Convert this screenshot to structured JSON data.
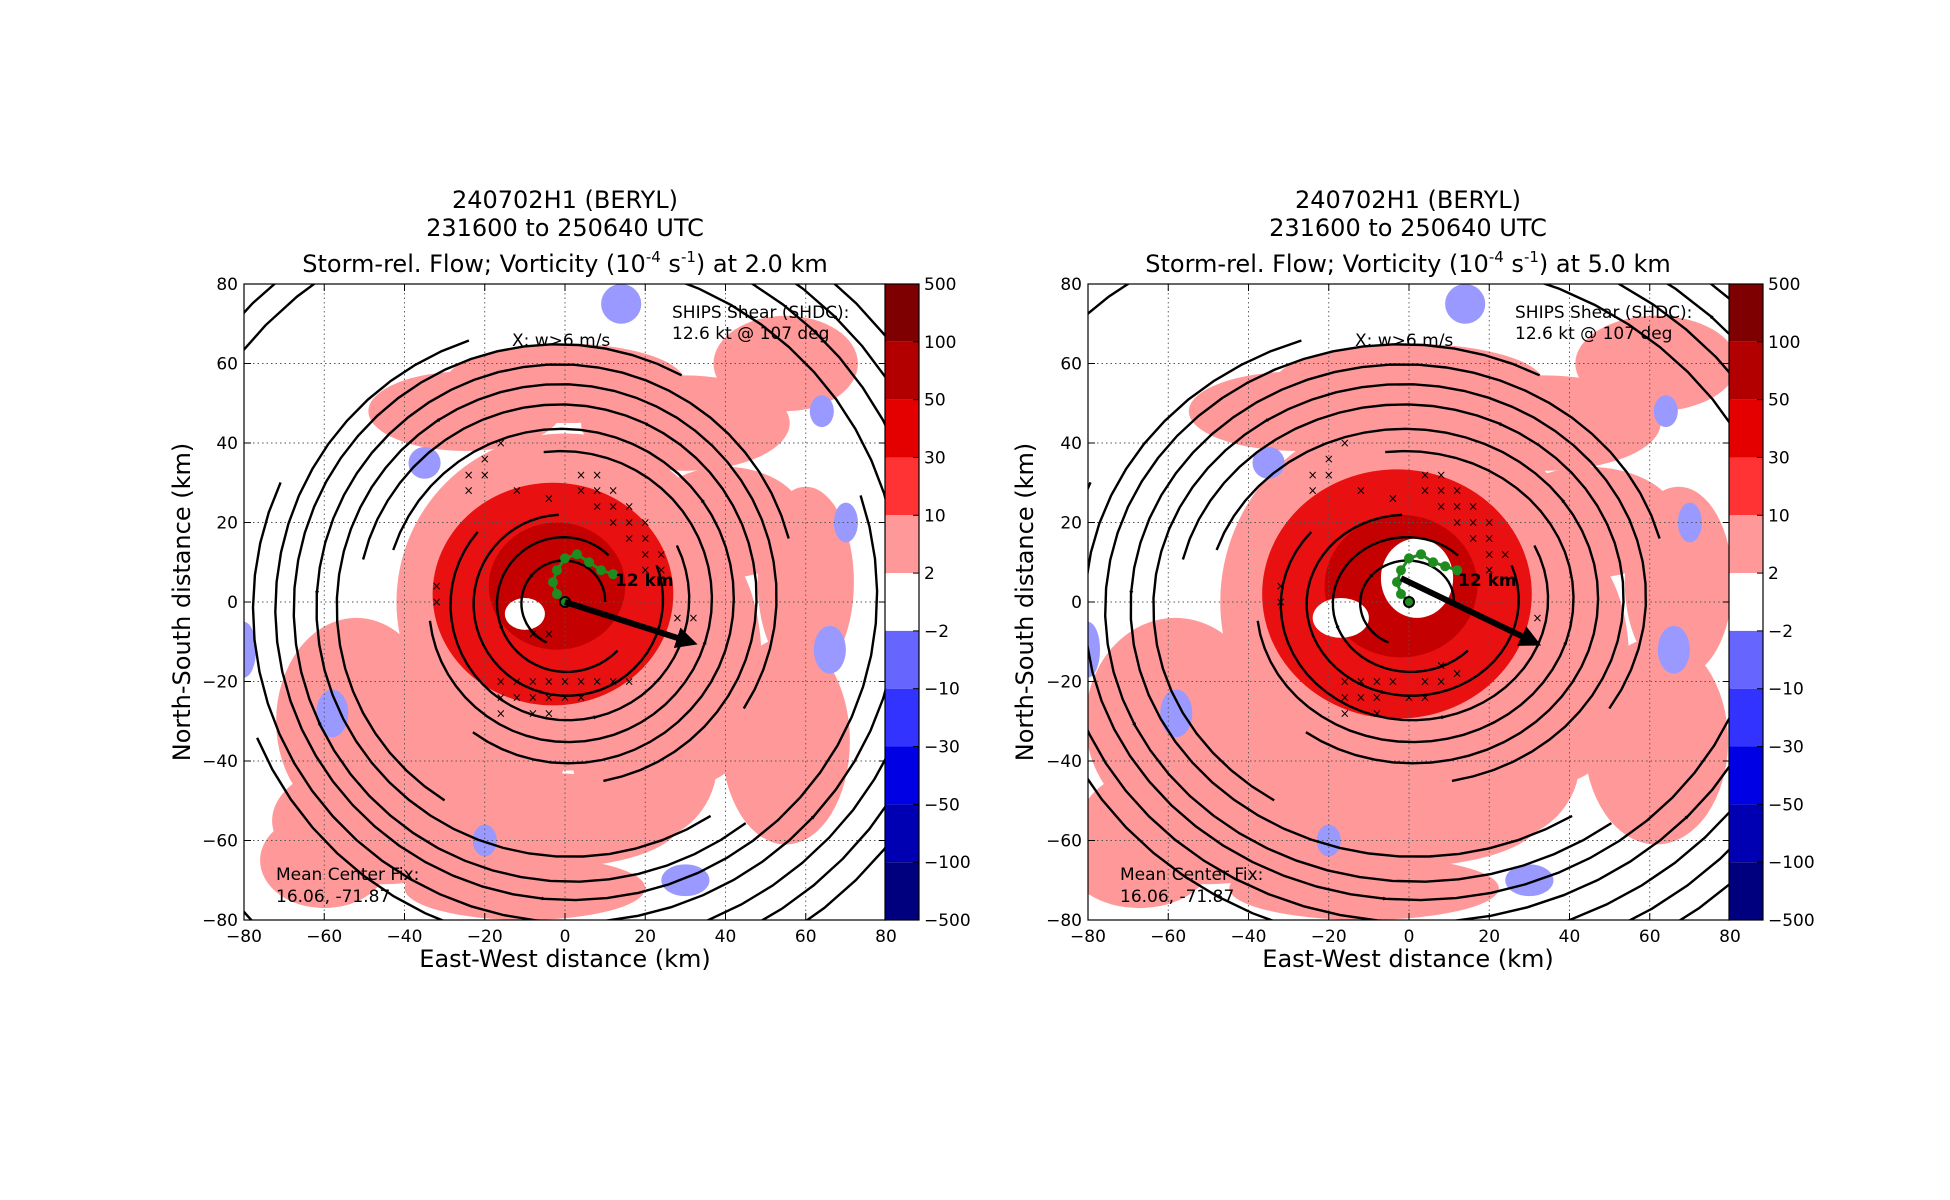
{
  "colors": {
    "colorbar": [
      "#00007f",
      "#0000b2",
      "#0000e5",
      "#3333ff",
      "#6666ff",
      "#9999ff",
      "#ffffff",
      "#ff9999",
      "#ff3333",
      "#e50000",
      "#b20000",
      "#7f0000"
    ],
    "pos_fill": "#ff9999",
    "neg_fill": "#9999ff",
    "core_fill": "#e81010",
    "inner_core_fill": "#c40000",
    "center_track": "#1e8c1e"
  },
  "chart_data": [
    {
      "type": "heatmap",
      "title": [
        "240702H1 (BERYL)",
        "231600 to 250640 UTC"
      ],
      "title_line3": {
        "prefix": "Storm-rel. Flow; Vorticity (10",
        "exp1": "-4",
        "mid": " s",
        "exp2": "-1",
        "suffix": ") at 2.0 km"
      },
      "xlabel": "East-West distance (km)",
      "ylabel": "North-South distance (km)",
      "xlim": [
        -80,
        80
      ],
      "ylim": [
        -80,
        80
      ],
      "xticks": [
        "−80",
        "−60",
        "−40",
        "−20",
        "0",
        "20",
        "40",
        "60",
        "80"
      ],
      "yticks": [
        "−80",
        "−60",
        "−40",
        "−20",
        "0",
        "20",
        "40",
        "60",
        "80"
      ],
      "grid": true,
      "annotations": {
        "shear": [
          "SHIPS Shear (SHDC):",
          "12.6 kt @ 107 deg"
        ],
        "xlabel_note": "X: w>6 m/s",
        "center_fix": [
          "Mean Center Fix:",
          "16.06, -71.87"
        ],
        "scale_label": "12 km"
      },
      "shear_vector": {
        "from": [
          0,
          0
        ],
        "to": [
          31,
          -10
        ]
      },
      "center_track": [
        [
          0,
          0
        ],
        [
          -2,
          2
        ],
        [
          -3,
          5
        ],
        [
          -2,
          8
        ],
        [
          0,
          11
        ],
        [
          3,
          12
        ],
        [
          6,
          10
        ],
        [
          9,
          8
        ],
        [
          12,
          7
        ]
      ],
      "w_markers": [
        [
          -16,
          40
        ],
        [
          -20,
          36
        ],
        [
          -24,
          32
        ],
        [
          -20,
          32
        ],
        [
          -24,
          28
        ],
        [
          -12,
          28
        ],
        [
          -4,
          26
        ],
        [
          4,
          32
        ],
        [
          8,
          32
        ],
        [
          4,
          28
        ],
        [
          8,
          28
        ],
        [
          12,
          28
        ],
        [
          8,
          24
        ],
        [
          12,
          24
        ],
        [
          16,
          24
        ],
        [
          12,
          20
        ],
        [
          16,
          20
        ],
        [
          20,
          20
        ],
        [
          16,
          16
        ],
        [
          20,
          16
        ],
        [
          20,
          12
        ],
        [
          24,
          12
        ],
        [
          20,
          8
        ],
        [
          24,
          8
        ],
        [
          -32,
          4
        ],
        [
          -32,
          0
        ],
        [
          28,
          -4
        ],
        [
          32,
          -4
        ],
        [
          -8,
          -8
        ],
        [
          -4,
          -8
        ],
        [
          -16,
          -20
        ],
        [
          -12,
          -20
        ],
        [
          -8,
          -20
        ],
        [
          -4,
          -20
        ],
        [
          0,
          -20
        ],
        [
          4,
          -20
        ],
        [
          8,
          -20
        ],
        [
          -16,
          -24
        ],
        [
          -12,
          -24
        ],
        [
          -8,
          -24
        ],
        [
          -4,
          -24
        ],
        [
          0,
          -24
        ],
        [
          -16,
          -28
        ],
        [
          -8,
          -28
        ],
        [
          -4,
          -28
        ],
        [
          4,
          -24
        ],
        [
          12,
          -20
        ],
        [
          16,
          -20
        ]
      ],
      "colorbar": {
        "ticks": [
          "500",
          "100",
          "50",
          "30",
          "10",
          "2",
          "−2",
          "−10",
          "−30",
          "−50",
          "−100",
          "−500"
        ]
      }
    },
    {
      "type": "heatmap",
      "title": [
        "240702H1 (BERYL)",
        "231600 to 250640 UTC"
      ],
      "title_line3": {
        "prefix": "Storm-rel. Flow; Vorticity (10",
        "exp1": "-4",
        "mid": " s",
        "exp2": "-1",
        "suffix": ") at 5.0 km"
      },
      "xlabel": "East-West distance (km)",
      "ylabel": "North-South distance (km)",
      "xlim": [
        -80,
        80
      ],
      "ylim": [
        -80,
        80
      ],
      "xticks": [
        "−80",
        "−60",
        "−40",
        "−20",
        "0",
        "20",
        "40",
        "60",
        "80"
      ],
      "yticks": [
        "−80",
        "−60",
        "−40",
        "−20",
        "0",
        "20",
        "40",
        "60",
        "80"
      ],
      "grid": true,
      "annotations": {
        "shear": [
          "SHIPS Shear (SHDC):",
          "12.6 kt @ 107 deg"
        ],
        "xlabel_note": "X: w>6 m/s",
        "center_fix": [
          "Mean Center Fix:",
          "16.06, -71.87"
        ],
        "scale_label": "12 km"
      },
      "shear_vector": {
        "from": [
          -2,
          6
        ],
        "to": [
          31,
          -10
        ]
      },
      "center_track": [
        [
          0,
          0
        ],
        [
          -2,
          2
        ],
        [
          -3,
          5
        ],
        [
          -2,
          8
        ],
        [
          0,
          11
        ],
        [
          3,
          12
        ],
        [
          6,
          10
        ],
        [
          9,
          9
        ],
        [
          12,
          8
        ]
      ],
      "w_markers": [
        [
          -16,
          40
        ],
        [
          -20,
          36
        ],
        [
          -24,
          32
        ],
        [
          -20,
          32
        ],
        [
          -24,
          28
        ],
        [
          -12,
          28
        ],
        [
          -4,
          26
        ],
        [
          4,
          32
        ],
        [
          8,
          32
        ],
        [
          4,
          28
        ],
        [
          8,
          28
        ],
        [
          12,
          28
        ],
        [
          8,
          24
        ],
        [
          12,
          24
        ],
        [
          16,
          24
        ],
        [
          12,
          20
        ],
        [
          16,
          20
        ],
        [
          20,
          20
        ],
        [
          16,
          16
        ],
        [
          20,
          16
        ],
        [
          20,
          12
        ],
        [
          24,
          12
        ],
        [
          20,
          8
        ],
        [
          -32,
          4
        ],
        [
          -32,
          0
        ],
        [
          32,
          -4
        ],
        [
          -16,
          -20
        ],
        [
          -12,
          -20
        ],
        [
          -8,
          -20
        ],
        [
          -4,
          -20
        ],
        [
          4,
          -20
        ],
        [
          8,
          -20
        ],
        [
          -16,
          -24
        ],
        [
          -12,
          -24
        ],
        [
          -8,
          -24
        ],
        [
          0,
          -24
        ],
        [
          4,
          -24
        ],
        [
          -16,
          -28
        ],
        [
          -8,
          -28
        ],
        [
          12,
          -18
        ],
        [
          8,
          -16
        ]
      ],
      "colorbar": {
        "ticks": [
          "500",
          "100",
          "50",
          "30",
          "10",
          "2",
          "−2",
          "−10",
          "−30",
          "−50",
          "−100",
          "−500"
        ]
      }
    }
  ]
}
